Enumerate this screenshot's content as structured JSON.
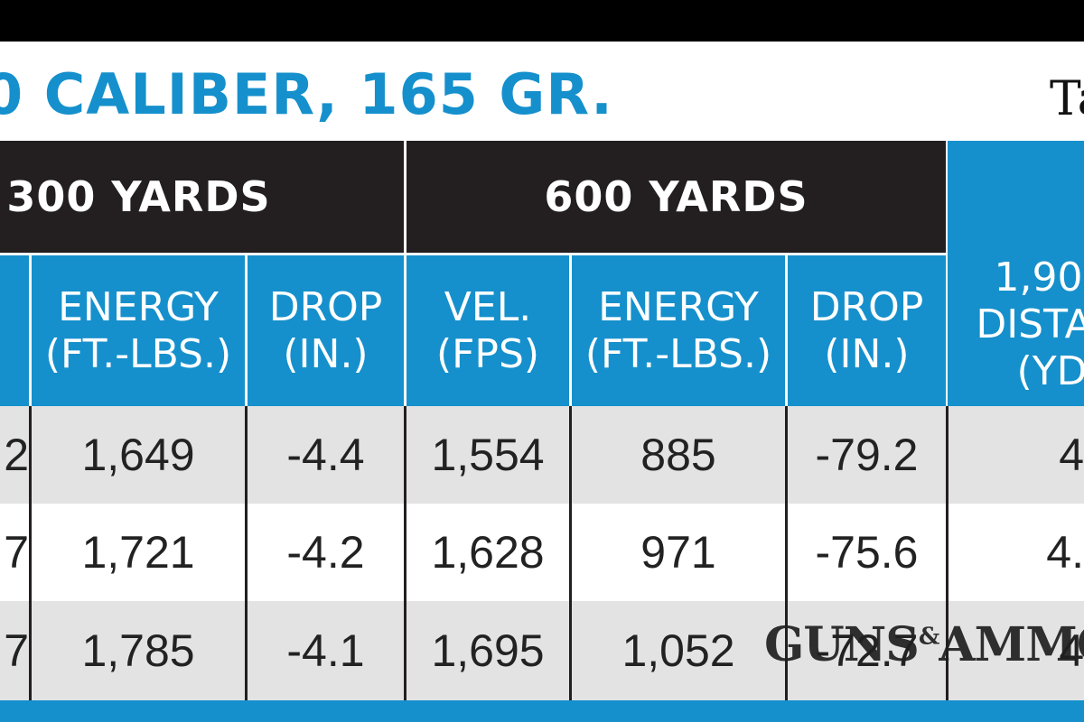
{
  "title": "0 CALIBER, 165 GR.",
  "title_right": "Ta",
  "groups": {
    "yards300": "300 YARDS",
    "yards600": "600 YARDS"
  },
  "col_headers": {
    "energy300": [
      "ENERGY",
      "(FT.-LBS.)"
    ],
    "drop300": [
      "DROP",
      "(IN.)"
    ],
    "vel600": [
      "VEL.",
      "(FPS)"
    ],
    "energy600": [
      "ENERGY",
      "(FT.-LBS.)"
    ],
    "drop600": [
      "DROP",
      "(IN.)"
    ],
    "distance": [
      "1,90",
      "DISTA",
      "(YD"
    ]
  },
  "rows": [
    {
      "vel300_tail": "2",
      "energy300": "1,649",
      "drop300": "-4.4",
      "vel600": "1,554",
      "energy600": "885",
      "drop600": "-79.2",
      "distance": "4"
    },
    {
      "vel300_tail": "7",
      "energy300": "1,721",
      "drop300": "-4.2",
      "vel600": "1,628",
      "energy600": "971",
      "drop600": "-75.6",
      "distance": "4."
    },
    {
      "vel300_tail": "7",
      "energy300": "1,785",
      "drop300": "-4.1",
      "vel600": "1,695",
      "energy600": "1,052",
      "drop600": "-72.7",
      "distance": "4"
    }
  ],
  "watermark": {
    "left": "GUNS",
    "amp": "&",
    "right": "AMMO"
  },
  "colors": {
    "accent_blue": "#1590cc",
    "header_dark": "#231f20",
    "row_gray": "#e3e3e3"
  }
}
